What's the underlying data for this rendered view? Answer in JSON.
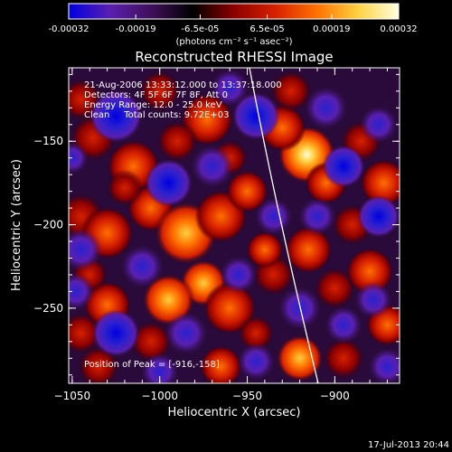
{
  "colorbar": {
    "ticks": [
      "-0.00032",
      "-0.00019",
      "-6.5e-05",
      "6.5e-05",
      "0.00019",
      "0.00032"
    ],
    "unit_label": "(photons cm⁻² s⁻¹ asec⁻²)",
    "range": [
      -0.00032,
      0.00032
    ]
  },
  "footer": {
    "timestamp": "17-Jul-2013 20:44"
  },
  "chart_data": {
    "type": "heatmap",
    "title": "Reconstructed RHESSI Image",
    "xlabel": "Heliocentric X (arcsec)",
    "ylabel": "Heliocentric Y (arcsec)",
    "xlim": [
      -1052,
      -863
    ],
    "ylim": [
      -295,
      -106
    ],
    "xticks": [
      -1050,
      -1000,
      -950,
      -900
    ],
    "yticks": [
      -150,
      -200,
      -250
    ],
    "annotations": [
      "21-Aug-2006 13:33:12.000 to 13:37:18.000",
      "Detectors: 4F 5F 6F 7F 8F, Att 0",
      "Energy Range: 12.0 - 25.0 keV",
      "Clean     Total counts: 9.72E+03"
    ],
    "peak_label": "Position of Peak = [-916,-158]",
    "peak": [
      -916,
      -158
    ],
    "colormap": [
      "#0000e0",
      "#5a1fb0",
      "#40105a",
      "#000000",
      "#8b0000",
      "#d72000",
      "#ff7000",
      "#ffd040",
      "#ffffe0"
    ],
    "blobs": [
      {
        "x": -916,
        "y": -158,
        "r": 11,
        "v": 1.0
      },
      {
        "x": -930,
        "y": -142,
        "r": 9,
        "v": 0.55
      },
      {
        "x": -905,
        "y": -175,
        "r": 8,
        "v": 0.5
      },
      {
        "x": -973,
        "y": -137,
        "r": 10,
        "v": 0.55
      },
      {
        "x": -990,
        "y": -150,
        "r": 8,
        "v": 0.45
      },
      {
        "x": -1015,
        "y": -165,
        "r": 10,
        "v": 0.5
      },
      {
        "x": -1038,
        "y": -148,
        "r": 9,
        "v": 0.45
      },
      {
        "x": -1045,
        "y": -195,
        "r": 9,
        "v": 0.45
      },
      {
        "x": -1030,
        "y": -205,
        "r": 10,
        "v": 0.6
      },
      {
        "x": -1005,
        "y": -190,
        "r": 9,
        "v": 0.5
      },
      {
        "x": -985,
        "y": -205,
        "r": 12,
        "v": 0.65
      },
      {
        "x": -965,
        "y": -195,
        "r": 10,
        "v": 0.6
      },
      {
        "x": -950,
        "y": -180,
        "r": 8,
        "v": 0.5
      },
      {
        "x": -975,
        "y": -235,
        "r": 9,
        "v": 0.65
      },
      {
        "x": -995,
        "y": -245,
        "r": 10,
        "v": 0.7
      },
      {
        "x": -1030,
        "y": -248,
        "r": 9,
        "v": 0.55
      },
      {
        "x": -1045,
        "y": -265,
        "r": 8,
        "v": 0.4
      },
      {
        "x": -960,
        "y": -250,
        "r": 10,
        "v": 0.5
      },
      {
        "x": -935,
        "y": -230,
        "r": 8,
        "v": 0.45
      },
      {
        "x": -940,
        "y": -215,
        "r": 7,
        "v": 0.5
      },
      {
        "x": -915,
        "y": -215,
        "r": 9,
        "v": 0.5
      },
      {
        "x": -900,
        "y": -238,
        "r": 8,
        "v": 0.45
      },
      {
        "x": -880,
        "y": -228,
        "r": 9,
        "v": 0.6
      },
      {
        "x": -872,
        "y": -175,
        "r": 9,
        "v": 0.55
      },
      {
        "x": -885,
        "y": -150,
        "r": 8,
        "v": 0.4
      },
      {
        "x": -890,
        "y": -200,
        "r": 8,
        "v": 0.45
      },
      {
        "x": -870,
        "y": -260,
        "r": 8,
        "v": 0.5
      },
      {
        "x": -895,
        "y": -280,
        "r": 8,
        "v": 0.45
      },
      {
        "x": -920,
        "y": -280,
        "r": 9,
        "v": 0.8
      },
      {
        "x": -965,
        "y": -285,
        "r": 8,
        "v": 0.5
      },
      {
        "x": -1005,
        "y": -270,
        "r": 8,
        "v": 0.4
      },
      {
        "x": -1035,
        "y": -285,
        "r": 8,
        "v": 0.45
      },
      {
        "x": -945,
        "y": -265,
        "r": 7,
        "v": 0.4
      },
      {
        "x": -1020,
        "y": -178,
        "r": 7,
        "v": 0.4
      },
      {
        "x": -960,
        "y": -160,
        "r": 7,
        "v": 0.45
      },
      {
        "x": -1040,
        "y": -230,
        "r": 7,
        "v": 0.4
      },
      {
        "x": -1000,
        "y": -120,
        "r": 8,
        "v": 0.35
      },
      {
        "x": -925,
        "y": -120,
        "r": 8,
        "v": 0.3
      },
      {
        "x": -1045,
        "y": -125,
        "r": 8,
        "v": 0.35
      },
      {
        "x": -1025,
        "y": -135,
        "r": 10,
        "v": -0.7
      },
      {
        "x": -995,
        "y": -175,
        "r": 9,
        "v": -0.75
      },
      {
        "x": -970,
        "y": -165,
        "r": 8,
        "v": -0.6
      },
      {
        "x": -945,
        "y": -135,
        "r": 9,
        "v": -0.7
      },
      {
        "x": -905,
        "y": -130,
        "r": 8,
        "v": -0.55
      },
      {
        "x": -895,
        "y": -165,
        "r": 8,
        "v": -0.7
      },
      {
        "x": -875,
        "y": -140,
        "r": 7,
        "v": -0.6
      },
      {
        "x": -875,
        "y": -195,
        "r": 8,
        "v": -0.7
      },
      {
        "x": -910,
        "y": -195,
        "r": 7,
        "v": -0.55
      },
      {
        "x": -935,
        "y": -195,
        "r": 7,
        "v": -0.5
      },
      {
        "x": -1045,
        "y": -215,
        "r": 8,
        "v": -0.6
      },
      {
        "x": -1010,
        "y": -225,
        "r": 8,
        "v": -0.6
      },
      {
        "x": -1025,
        "y": -265,
        "r": 9,
        "v": -0.7
      },
      {
        "x": -985,
        "y": -265,
        "r": 8,
        "v": -0.65
      },
      {
        "x": -955,
        "y": -230,
        "r": 7,
        "v": -0.55
      },
      {
        "x": -920,
        "y": -250,
        "r": 8,
        "v": -0.65
      },
      {
        "x": -878,
        "y": -245,
        "r": 7,
        "v": -0.6
      },
      {
        "x": -895,
        "y": -260,
        "r": 7,
        "v": -0.55
      },
      {
        "x": -945,
        "y": -282,
        "r": 7,
        "v": -0.5
      },
      {
        "x": -1000,
        "y": -288,
        "r": 7,
        "v": -0.45
      },
      {
        "x": -1048,
        "y": -240,
        "r": 7,
        "v": -0.5
      },
      {
        "x": -870,
        "y": -285,
        "r": 7,
        "v": -0.5
      },
      {
        "x": -1050,
        "y": -160,
        "r": 6,
        "v": -0.4
      },
      {
        "x": -960,
        "y": -118,
        "r": 7,
        "v": -0.45
      }
    ]
  }
}
